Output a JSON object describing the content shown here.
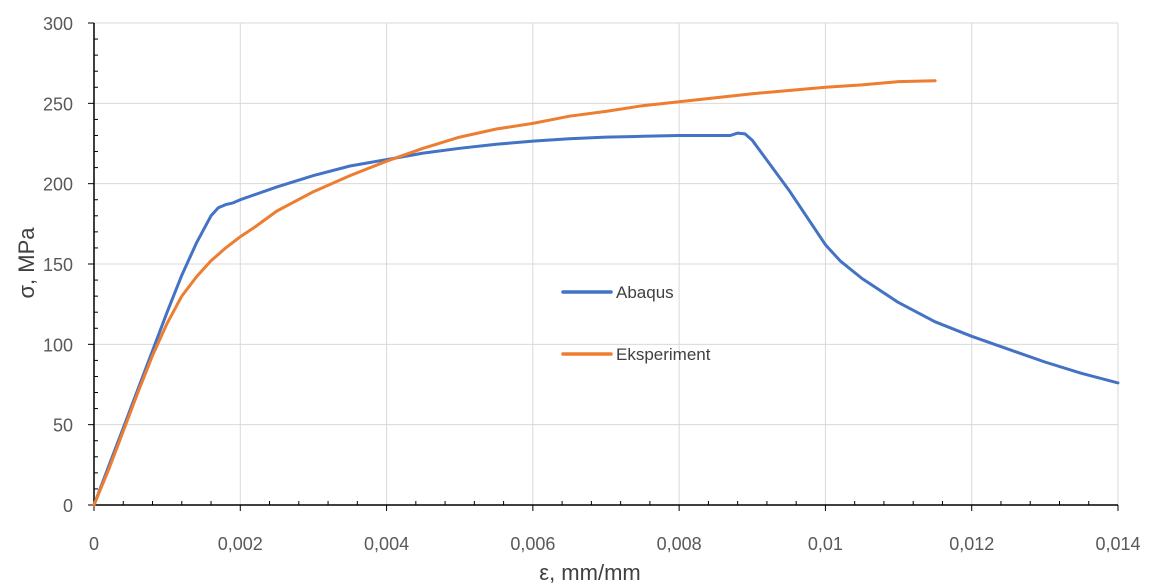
{
  "chart_data": {
    "type": "line",
    "xlabel": "ε, mm/mm",
    "ylabel": "σ, MPa",
    "xlim": [
      0,
      0.014
    ],
    "ylim": [
      0,
      300
    ],
    "x_ticks": [
      0,
      0.002,
      0.004,
      0.006,
      0.008,
      0.01,
      0.012,
      0.014
    ],
    "x_tick_labels": [
      "0",
      "0,002",
      "0,004",
      "0,006",
      "0,008",
      "0,01",
      "0,012",
      "0,014"
    ],
    "y_ticks": [
      0,
      50,
      100,
      150,
      200,
      250,
      300
    ],
    "y_tick_labels": [
      "0",
      "50",
      "100",
      "150",
      "200",
      "250",
      "300"
    ],
    "grid": true,
    "legend_position": "center",
    "series": [
      {
        "name": "Abaqus",
        "color": "#4472C4",
        "x": [
          0,
          0.0002,
          0.0004,
          0.0006,
          0.0008,
          0.001,
          0.0012,
          0.0014,
          0.0016,
          0.0017,
          0.0018,
          0.0019,
          0.002,
          0.0025,
          0.003,
          0.0035,
          0.004,
          0.0045,
          0.005,
          0.0055,
          0.006,
          0.0065,
          0.007,
          0.0075,
          0.008,
          0.0085,
          0.0087,
          0.0088,
          0.0089,
          0.009,
          0.0095,
          0.01,
          0.0102,
          0.0105,
          0.011,
          0.0115,
          0.012,
          0.0125,
          0.013,
          0.0135,
          0.014
        ],
        "y": [
          0,
          24,
          48,
          72,
          96,
          120,
          143,
          163,
          180,
          185,
          187,
          188,
          190,
          198,
          205,
          211,
          215,
          219,
          222,
          224.5,
          226.5,
          228,
          229,
          229.5,
          230,
          230,
          230,
          231.5,
          231,
          227,
          196,
          162,
          152,
          141,
          126,
          114,
          105,
          97,
          89,
          82,
          76
        ]
      },
      {
        "name": "Eksperiment",
        "color": "#ED7D31",
        "x": [
          0,
          0.0002,
          0.0004,
          0.0006,
          0.0008,
          0.001,
          0.0012,
          0.0014,
          0.0016,
          0.0018,
          0.002,
          0.0022,
          0.0025,
          0.003,
          0.0035,
          0.004,
          0.0045,
          0.005,
          0.0055,
          0.006,
          0.0065,
          0.007,
          0.0075,
          0.008,
          0.0085,
          0.009,
          0.0095,
          0.01,
          0.0105,
          0.011,
          0.0115
        ],
        "y": [
          0,
          22,
          46,
          70,
          93,
          113,
          130,
          142,
          152,
          160,
          167,
          173,
          183,
          195,
          205,
          214,
          222,
          229,
          234,
          237.5,
          242,
          245,
          248.5,
          251,
          253.5,
          256,
          258,
          260,
          261.5,
          263.5,
          264
        ]
      }
    ]
  }
}
